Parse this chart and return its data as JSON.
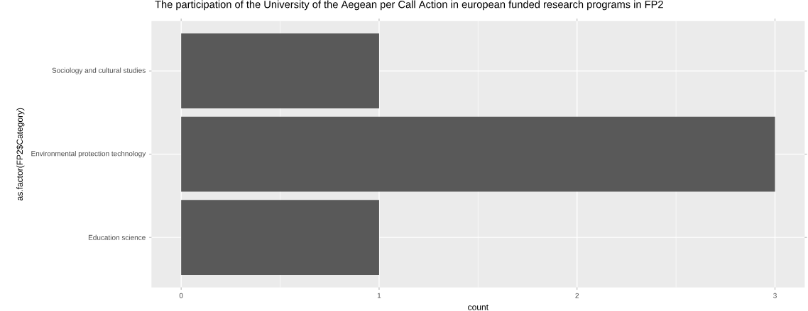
{
  "chart_data": {
    "type": "bar",
    "orientation": "horizontal",
    "title": "The participation of the University of the Aegean per Call Action in european funded research programs in FP2",
    "xlabel": "count",
    "ylabel": "as.factor(FP2$Category)",
    "categories": [
      "Sociology and cultural studies",
      "Environmental protection technology",
      "Education science"
    ],
    "values": [
      1,
      3,
      1
    ],
    "color": "#595959",
    "xlim": [
      -0.15,
      3.15
    ],
    "xticks": [
      0,
      1,
      2,
      3
    ],
    "grid": true
  }
}
